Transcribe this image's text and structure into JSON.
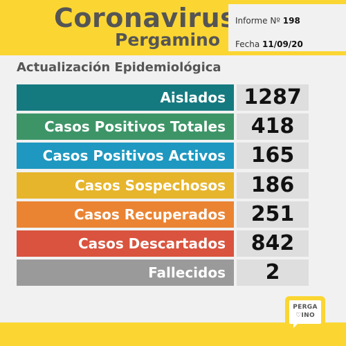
{
  "header": {
    "title": "Coronavirus",
    "subtitle": "Pergamino",
    "report_label": "Informe Nº",
    "report_number": "198",
    "date_label": "Fecha",
    "date_value": "11/09/20",
    "band_color": "#fbd633"
  },
  "section_title": "Actualización Epidemiológica",
  "stats": [
    {
      "label": "Aislados",
      "value": "1287",
      "color": "#157a80"
    },
    {
      "label": "Casos Positivos Totales",
      "value": "418",
      "color": "#3d9567"
    },
    {
      "label": "Casos Positivos Activos",
      "value": "165",
      "color": "#1e98c0"
    },
    {
      "label": "Casos Sospechosos",
      "value": "186",
      "color": "#e6b52c"
    },
    {
      "label": "Casos Recuperados",
      "value": "251",
      "color": "#ea8433"
    },
    {
      "label": "Casos Descartados",
      "value": "842",
      "color": "#d9533e"
    },
    {
      "label": "Fallecidos",
      "value": "2",
      "color": "#9a9a9a"
    }
  ],
  "logo": {
    "line1": "PERGA",
    "heart": "♡",
    "line2": "INO"
  }
}
